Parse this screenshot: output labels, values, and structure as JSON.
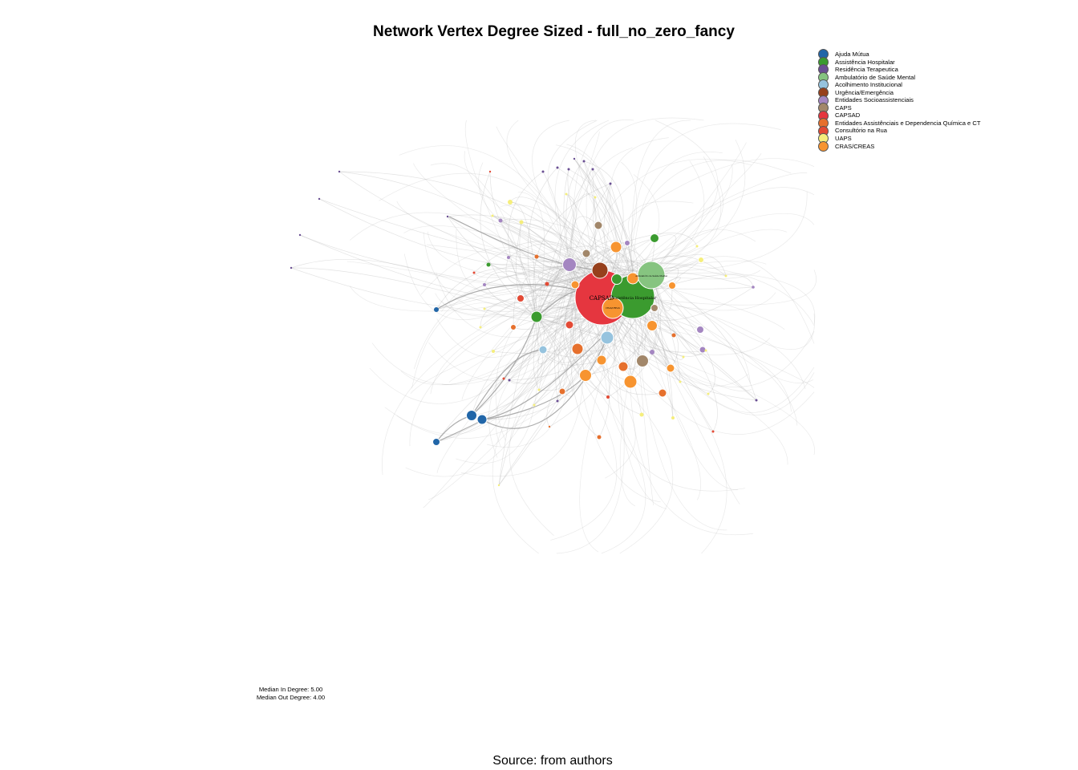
{
  "title": "Network Vertex Degree Sized - full_no_zero_fancy",
  "legend": [
    {
      "label": "Ajuda Mútua",
      "color": "#2166a8"
    },
    {
      "label": "Assistência Hospitalar",
      "color": "#3b9b2f"
    },
    {
      "label": "Residência Terapeutica",
      "color": "#6a4f93"
    },
    {
      "label": "Ambulatório de Saúde Mental",
      "color": "#86c480"
    },
    {
      "label": "Acolhimento Institucional",
      "color": "#96c3de"
    },
    {
      "label": "Urgência/Emergência",
      "color": "#96401c"
    },
    {
      "label": "Entidades Socioassistenciais",
      "color": "#a486c1"
    },
    {
      "label": "CAPS",
      "color": "#a2876a"
    },
    {
      "label": "CAPSAD",
      "color": "#e5363f"
    },
    {
      "label": "Entidades Assistênciais e Dependencia Química e CT",
      "color": "#e6702d"
    },
    {
      "label": "Consultório na Rua",
      "color": "#e34a35"
    },
    {
      "label": "UAPS",
      "color": "#f5ee7c"
    },
    {
      "label": "CRAS/CREAS",
      "color": "#f79430"
    }
  ],
  "node_labels": {
    "capsad": "CAPSAD",
    "hospital": "Assistência Hospitalar",
    "ambulatorio": "Ambulatório de Saúde Mental",
    "cras": "CRAS/CREAS"
  },
  "stats": {
    "median_in": "Median In Degree: 5.00",
    "median_out": "Median Out Degree: 4.00"
  },
  "source": "Source: from authors"
}
